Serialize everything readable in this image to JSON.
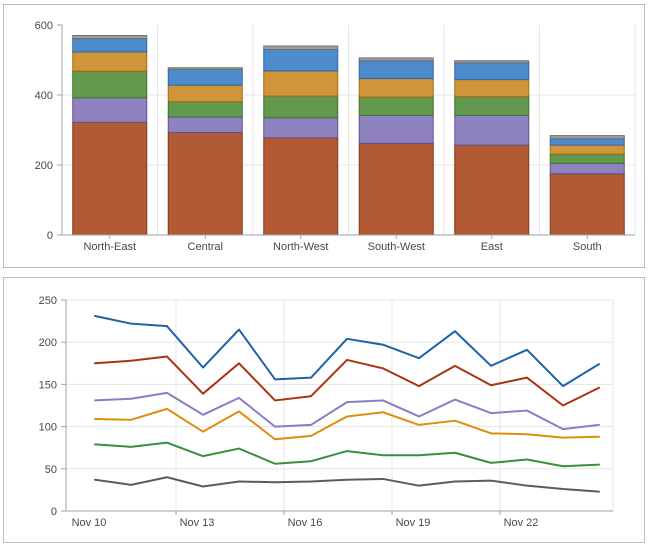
{
  "page": {
    "background": "#ffffff",
    "panel_border_color": "#b9bcc0",
    "axis_color": "#9da3a8",
    "grid_color": "#e5e5e5",
    "label_color": "#45494f",
    "label_font_size": 11
  },
  "chart_data": [
    {
      "type": "bar",
      "stacked": true,
      "title": "",
      "xlabel": "",
      "ylabel": "",
      "categories": [
        "North-East",
        "Central",
        "North-West",
        "South-West",
        "East",
        "South"
      ],
      "series": [
        {
          "name": "segment-rust",
          "color": "#b15a33",
          "border": "#80391c",
          "values": [
            322,
            293,
            278,
            262,
            257,
            175
          ]
        },
        {
          "name": "segment-purple",
          "color": "#8f82c0",
          "border": "#5f5296",
          "values": [
            70,
            44,
            57,
            80,
            85,
            30
          ]
        },
        {
          "name": "segment-green",
          "color": "#63994f",
          "border": "#3b7328",
          "values": [
            76,
            44,
            62,
            52,
            53,
            26
          ]
        },
        {
          "name": "segment-orange",
          "color": "#d0953a",
          "border": "#a26b10",
          "values": [
            55,
            47,
            72,
            53,
            49,
            26
          ]
        },
        {
          "name": "segment-blue",
          "color": "#4e8bcd",
          "border": "#2a67ab",
          "values": [
            38,
            45,
            61,
            51,
            48,
            18
          ]
        },
        {
          "name": "segment-gray",
          "color": "#9e9e9e",
          "border": "#6f6f6f",
          "values": [
            9,
            5,
            10,
            8,
            6,
            9
          ]
        }
      ],
      "stack_totals": [
        570,
        478,
        540,
        506,
        498,
        284
      ],
      "ylim": [
        0,
        600
      ],
      "yticks": [
        0,
        200,
        400,
        600
      ],
      "grid": true,
      "legend": "none"
    },
    {
      "type": "line",
      "title": "",
      "xlabel": "",
      "ylabel": "",
      "x_tick_labels": [
        "Nov 10",
        "Nov 13",
        "Nov 16",
        "Nov 19",
        "Nov 22"
      ],
      "x_tick_indices": [
        0,
        3,
        6,
        9,
        12
      ],
      "num_points": 15,
      "series": [
        {
          "name": "line-blue",
          "color": "#1e62a9",
          "values": [
            231,
            222,
            219,
            170,
            215,
            156,
            158,
            204,
            197,
            181,
            213,
            172,
            191,
            148,
            174
          ]
        },
        {
          "name": "line-red",
          "color": "#ac330e",
          "values": [
            175,
            178,
            183,
            139,
            175,
            131,
            136,
            179,
            169,
            148,
            172,
            149,
            158,
            125,
            146
          ]
        },
        {
          "name": "line-purple",
          "color": "#8b7dc3",
          "values": [
            131,
            133,
            140,
            114,
            134,
            100,
            102,
            129,
            131,
            112,
            132,
            116,
            119,
            97,
            102
          ]
        },
        {
          "name": "line-orange",
          "color": "#de8d10",
          "values": [
            109,
            108,
            121,
            94,
            118,
            85,
            89,
            112,
            117,
            102,
            107,
            92,
            91,
            87,
            88
          ]
        },
        {
          "name": "line-green",
          "color": "#3a8f3a",
          "values": [
            79,
            76,
            81,
            65,
            74,
            56,
            59,
            71,
            66,
            66,
            69,
            57,
            61,
            53,
            55
          ]
        },
        {
          "name": "line-gray",
          "color": "#5c5c5c",
          "values": [
            37,
            31,
            40,
            29,
            35,
            34,
            35,
            37,
            38,
            30,
            35,
            36,
            30,
            26,
            23
          ]
        }
      ],
      "ylim": [
        0,
        250
      ],
      "yticks": [
        0,
        50,
        100,
        150,
        200,
        250
      ],
      "grid": true,
      "legend": "none"
    }
  ]
}
